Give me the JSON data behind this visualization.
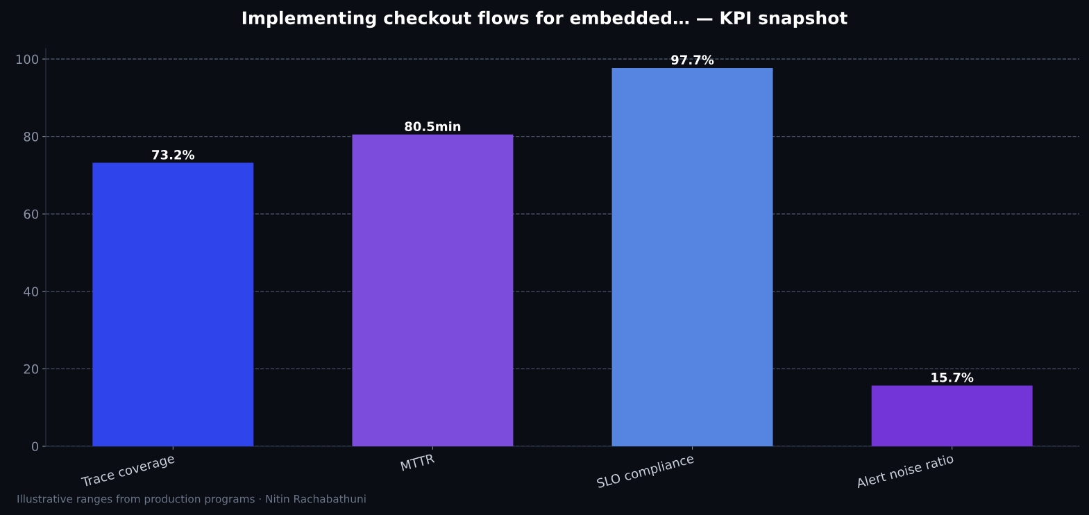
{
  "chart_data": {
    "type": "bar",
    "title": "Implementing checkout flows for embedded… — KPI snapshot",
    "categories": [
      "Trace coverage",
      "MTTR",
      "SLO compliance",
      "Alert noise ratio"
    ],
    "values": [
      73.2,
      80.5,
      97.7,
      15.7
    ],
    "colors": [
      "#3044ec",
      "#7c4ddc",
      "#5585e0",
      "#7335d8"
    ],
    "value_labels": [
      "73.2%",
      "80.5min",
      "97.7%",
      "15.7%"
    ],
    "ylim": [
      0,
      102.7
    ],
    "yticks": [
      0,
      20,
      40,
      60,
      80,
      100
    ],
    "grid": "y",
    "annotations": [
      "Illustrative ranges from production programs · Nitin Rachabathuni"
    ]
  }
}
